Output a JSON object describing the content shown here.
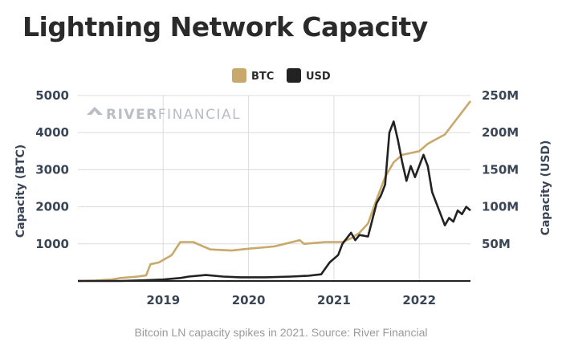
{
  "chart_data": {
    "type": "line",
    "title": "Lightning Network Capacity",
    "caption": "Bitcoin LN capacity spikes in 2021. Source: River Financial",
    "watermark": {
      "bold": "RIVER",
      "light": "FINANCIAL"
    },
    "y_left": {
      "label": "Capacity (BTC)",
      "ticks": [
        "1000",
        "2000",
        "3000",
        "4000",
        "5000"
      ],
      "tick_values": [
        1000,
        2000,
        3000,
        4000,
        5000
      ],
      "range": [
        0,
        5000
      ]
    },
    "y_right": {
      "label": "Capacity (USD)",
      "ticks": [
        "50M",
        "100M",
        "150M",
        "200M",
        "250M"
      ],
      "tick_values": [
        50,
        100,
        150,
        200,
        250
      ],
      "range": [
        0,
        250
      ]
    },
    "x": {
      "ticks": [
        "2019",
        "2020",
        "2021",
        "2022"
      ],
      "tick_values": [
        2019,
        2020,
        2021,
        2022
      ],
      "range": [
        2018.0,
        2022.6
      ]
    },
    "legend": {
      "position": "top-center"
    },
    "grid": true,
    "series": [
      {
        "name": "BTC",
        "color": "#c9a86b",
        "axis": "left",
        "points": [
          [
            2018.0,
            0
          ],
          [
            2018.2,
            10
          ],
          [
            2018.4,
            40
          ],
          [
            2018.5,
            80
          ],
          [
            2018.7,
            120
          ],
          [
            2018.8,
            150
          ],
          [
            2018.85,
            450
          ],
          [
            2018.95,
            500
          ],
          [
            2019.1,
            700
          ],
          [
            2019.2,
            1050
          ],
          [
            2019.35,
            1050
          ],
          [
            2019.45,
            950
          ],
          [
            2019.55,
            850
          ],
          [
            2019.8,
            820
          ],
          [
            2020.0,
            870
          ],
          [
            2020.3,
            930
          ],
          [
            2020.6,
            1100
          ],
          [
            2020.65,
            1000
          ],
          [
            2020.9,
            1050
          ],
          [
            2021.1,
            1050
          ],
          [
            2021.2,
            1150
          ],
          [
            2021.3,
            1300
          ],
          [
            2021.4,
            1550
          ],
          [
            2021.5,
            2200
          ],
          [
            2021.6,
            2800
          ],
          [
            2021.7,
            3200
          ],
          [
            2021.8,
            3400
          ],
          [
            2021.9,
            3450
          ],
          [
            2022.0,
            3500
          ],
          [
            2022.1,
            3700
          ],
          [
            2022.3,
            3950
          ],
          [
            2022.45,
            4400
          ],
          [
            2022.6,
            4850
          ]
        ]
      },
      {
        "name": "USD",
        "color": "#222222",
        "axis": "right",
        "points": [
          [
            2018.0,
            0
          ],
          [
            2018.5,
            0
          ],
          [
            2018.8,
            1
          ],
          [
            2019.0,
            2
          ],
          [
            2019.2,
            4
          ],
          [
            2019.3,
            6
          ],
          [
            2019.5,
            8
          ],
          [
            2019.7,
            6
          ],
          [
            2019.9,
            5
          ],
          [
            2020.2,
            5
          ],
          [
            2020.5,
            6
          ],
          [
            2020.7,
            7
          ],
          [
            2020.85,
            9
          ],
          [
            2020.95,
            25
          ],
          [
            2021.05,
            35
          ],
          [
            2021.1,
            50
          ],
          [
            2021.2,
            65
          ],
          [
            2021.25,
            55
          ],
          [
            2021.3,
            62
          ],
          [
            2021.4,
            60
          ],
          [
            2021.5,
            105
          ],
          [
            2021.55,
            115
          ],
          [
            2021.6,
            130
          ],
          [
            2021.65,
            200
          ],
          [
            2021.7,
            215
          ],
          [
            2021.75,
            190
          ],
          [
            2021.8,
            160
          ],
          [
            2021.85,
            135
          ],
          [
            2021.9,
            155
          ],
          [
            2021.95,
            140
          ],
          [
            2022.05,
            170
          ],
          [
            2022.1,
            155
          ],
          [
            2022.15,
            120
          ],
          [
            2022.2,
            105
          ],
          [
            2022.25,
            90
          ],
          [
            2022.3,
            75
          ],
          [
            2022.35,
            85
          ],
          [
            2022.4,
            80
          ],
          [
            2022.45,
            95
          ],
          [
            2022.5,
            90
          ],
          [
            2022.55,
            100
          ],
          [
            2022.6,
            95
          ]
        ]
      }
    ]
  }
}
